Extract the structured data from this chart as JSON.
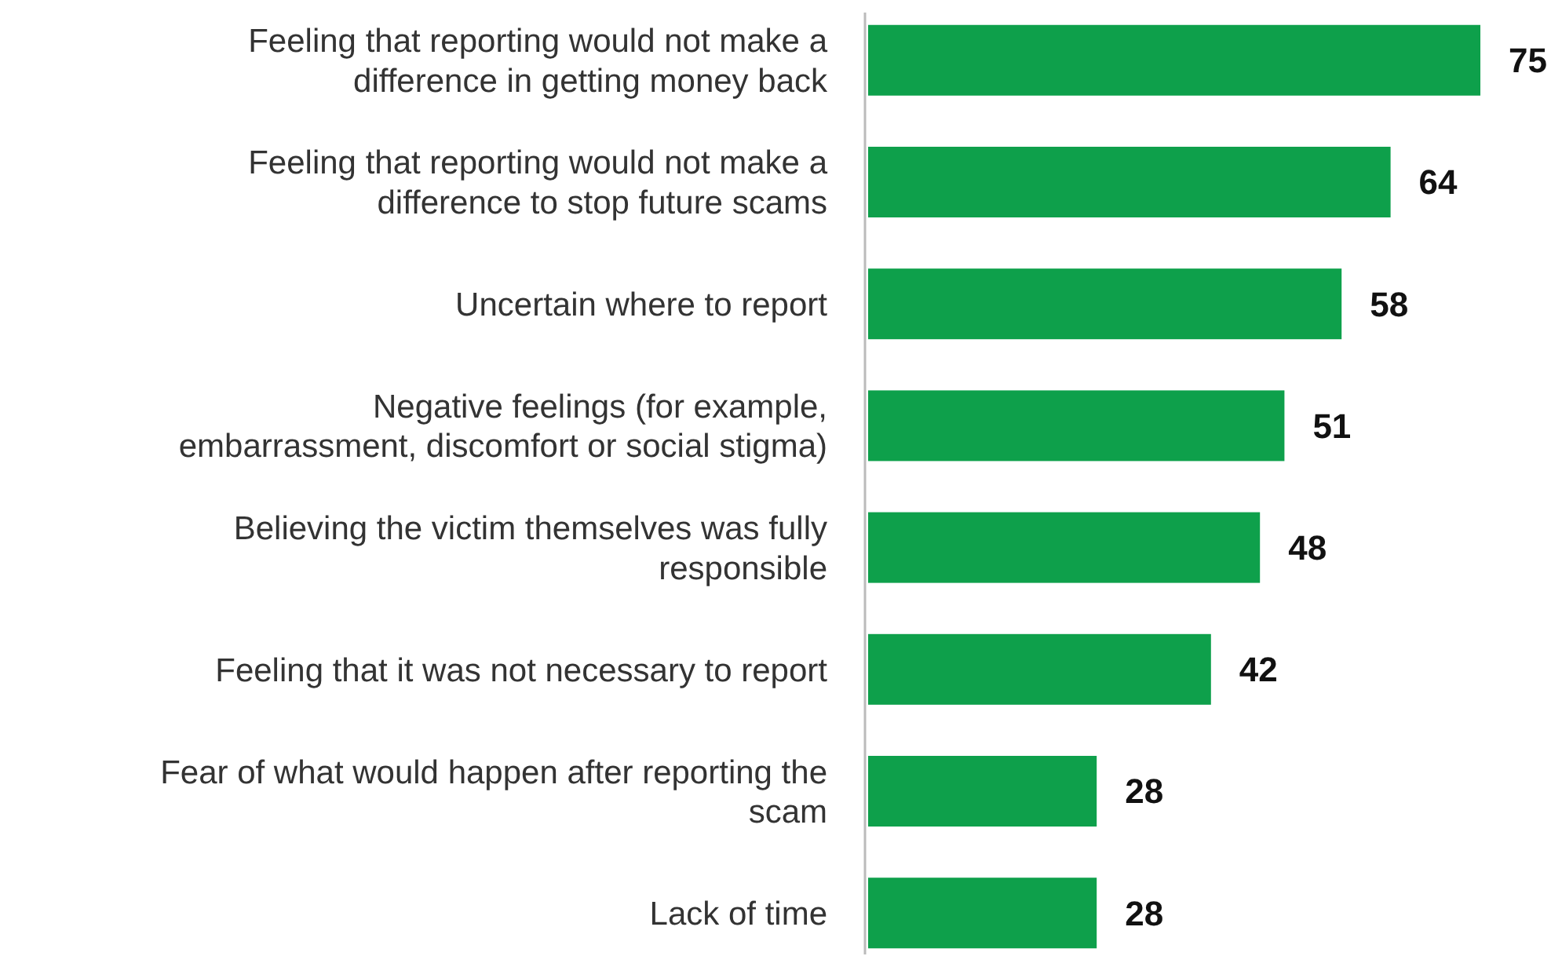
{
  "chart_data": {
    "type": "bar",
    "orientation": "horizontal",
    "data_labels": true,
    "categories": [
      "Feeling that reporting would not make a difference in getting money back",
      "Feeling that reporting would not make a difference to stop future scams",
      "Uncertain where to report",
      "Negative feelings (for example, embarrassment, discomfort or social stigma)",
      "Believing the victim themselves was fully responsible",
      "Feeling that it was not necessary to report",
      "Fear of what would happen after reporting the scam",
      "Lack of time"
    ],
    "values": [
      75,
      64,
      58,
      51,
      48,
      42,
      28,
      28
    ],
    "color": "#0ea04b"
  }
}
